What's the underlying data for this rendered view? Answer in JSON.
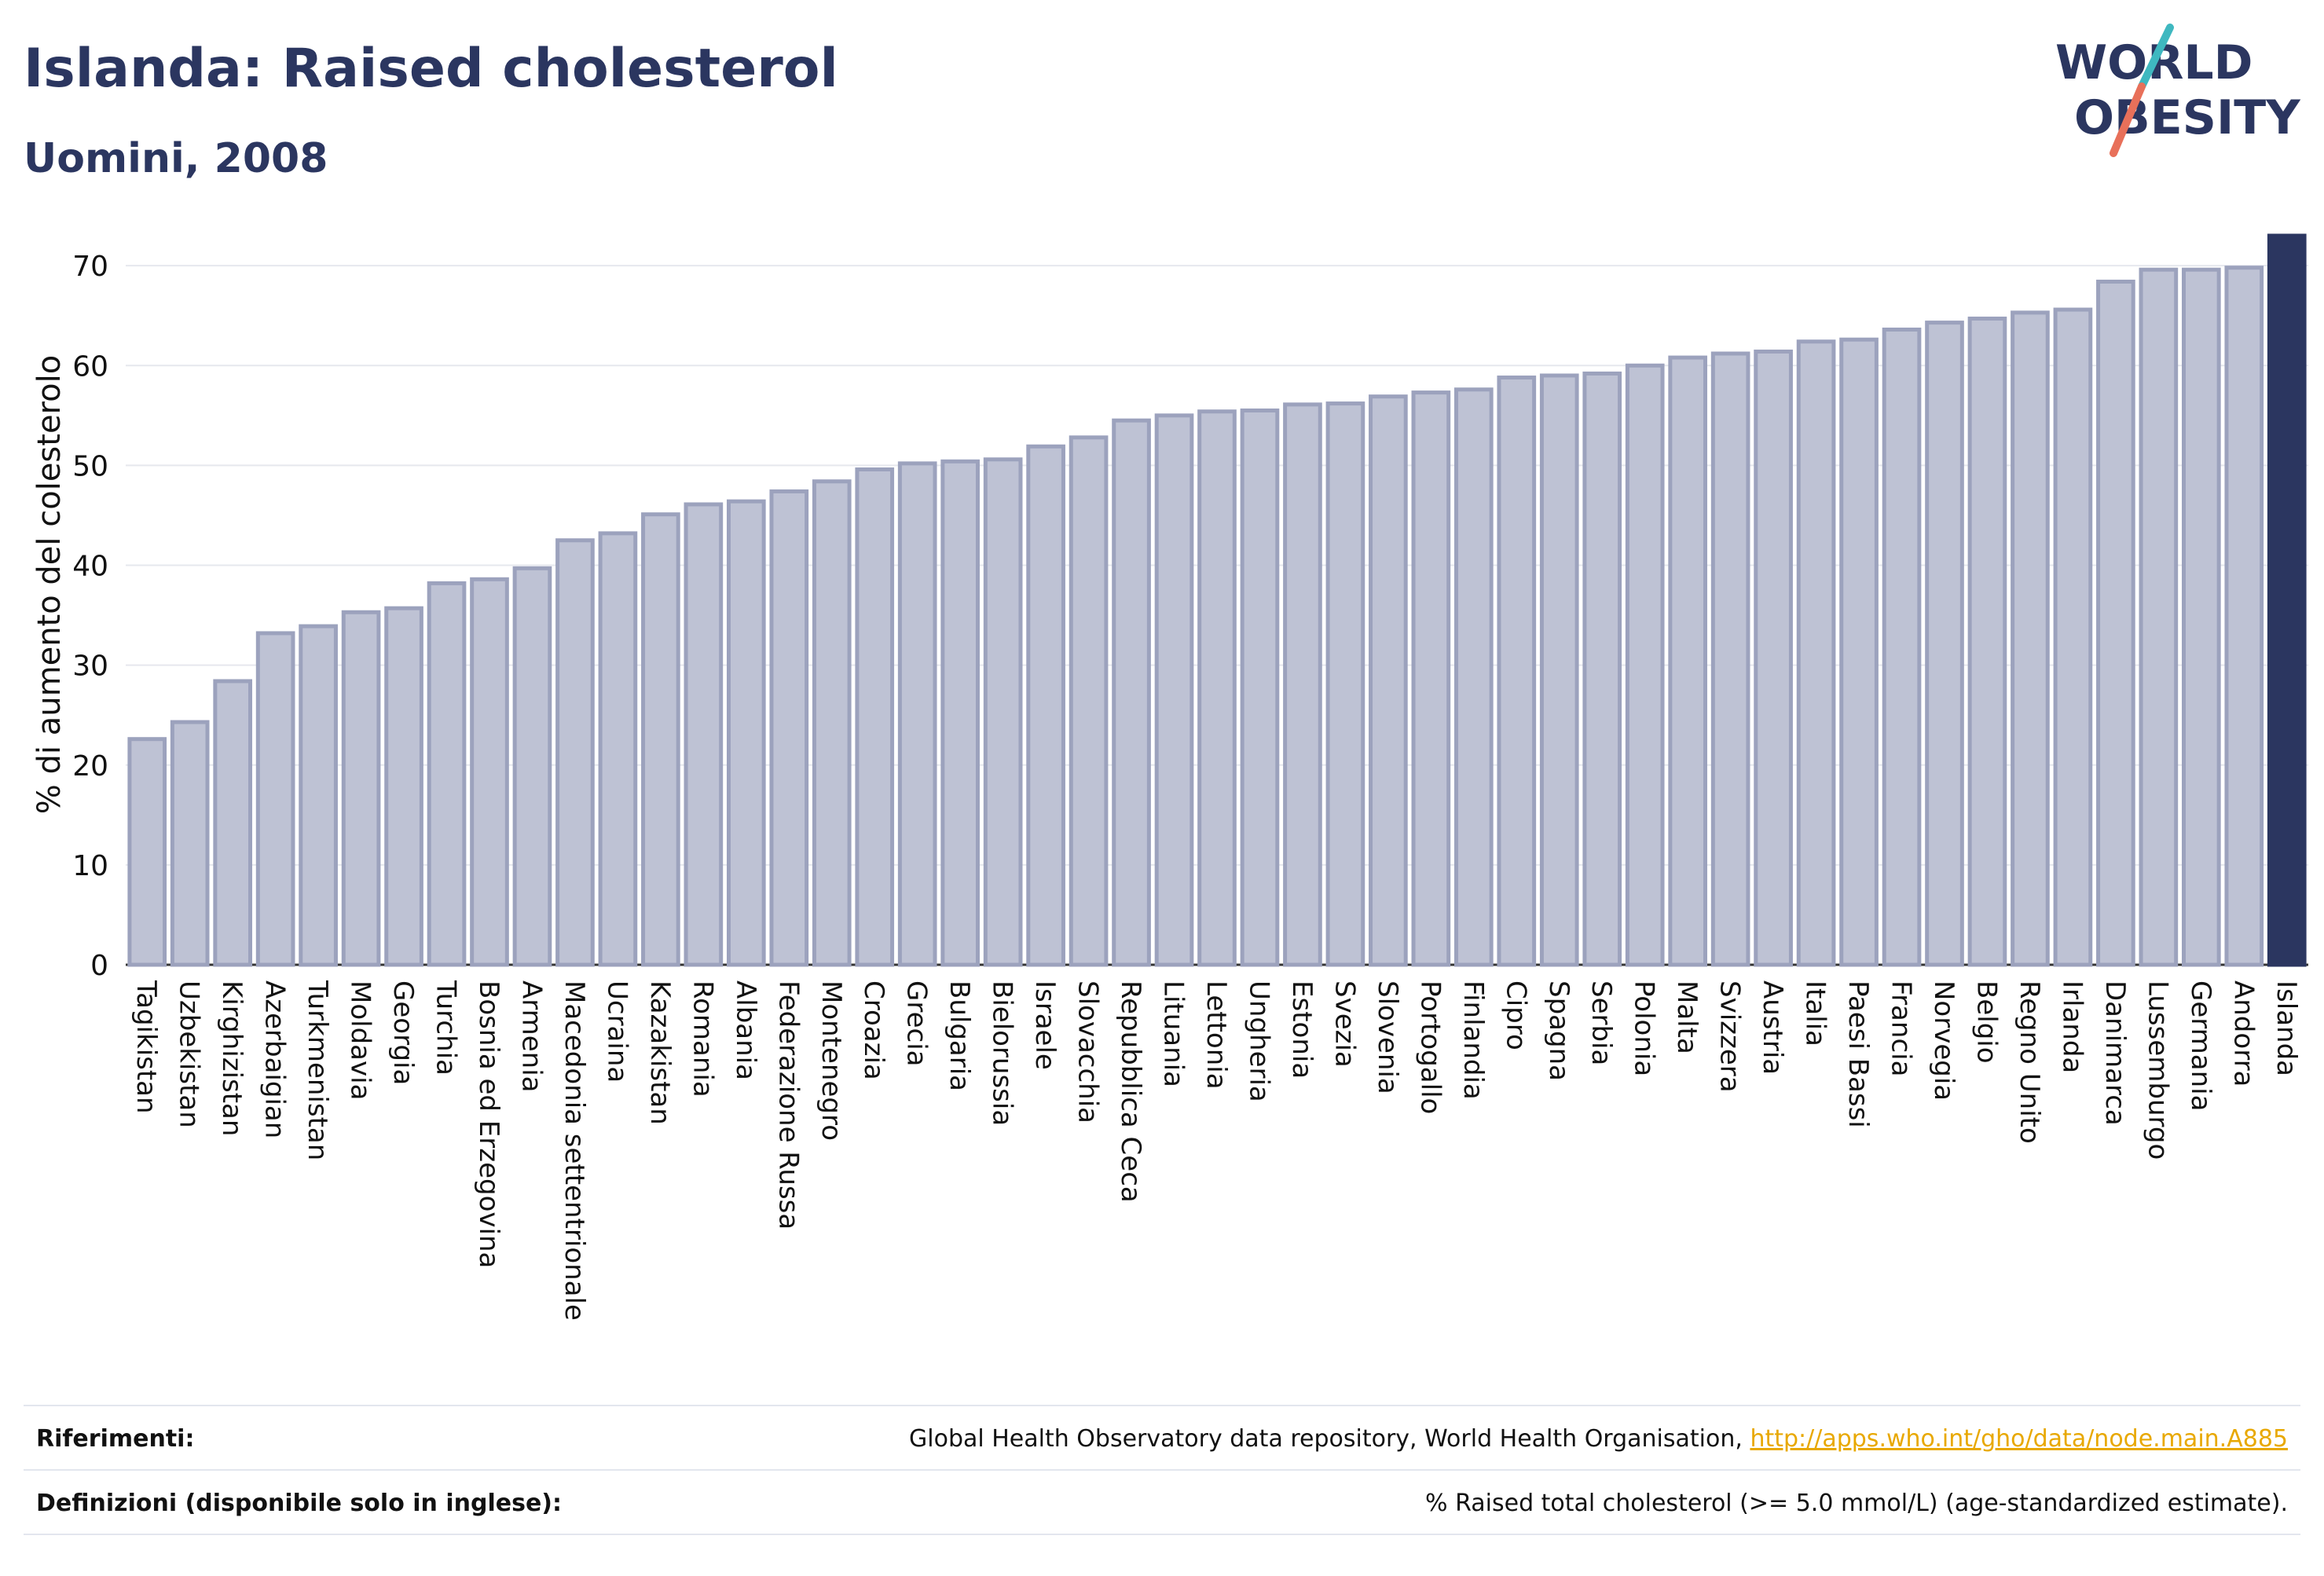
{
  "header": {
    "title": "Islanda: Raised cholesterol",
    "subtitle": "Uomini, 2008"
  },
  "logo": {
    "line1": "WORLD",
    "line2": "OBESITY",
    "colors": {
      "text": "#2b3660",
      "slash_teal": "#3fb8c0",
      "slash_coral": "#e8705a"
    }
  },
  "chart_data": {
    "type": "bar",
    "ylabel": "% di aumento del colesterolo",
    "ylim": [
      0,
      73
    ],
    "yticks": [
      0,
      10,
      20,
      30,
      40,
      50,
      60,
      70
    ],
    "grid": true,
    "categories": [
      "Tagikistan",
      "Uzbekistan",
      "Kirghizistan",
      "Azerbaigian",
      "Turkmenistan",
      "Moldavia",
      "Georgia",
      "Turchia",
      "Bosnia ed Erzegovina",
      "Armenia",
      "Macedonia settentrionale",
      "Ucraina",
      "Kazakistan",
      "Romania",
      "Albania",
      "Federazione Russa",
      "Montenegro",
      "Croazia",
      "Grecia",
      "Bulgaria",
      "Bielorussia",
      "Israele",
      "Slovacchia",
      "Repubblica Ceca",
      "Lituania",
      "Lettonia",
      "Ungheria",
      "Estonia",
      "Svezia",
      "Slovenia",
      "Portogallo",
      "Finlandia",
      "Cipro",
      "Spagna",
      "Serbia",
      "Polonia",
      "Malta",
      "Svizzera",
      "Austria",
      "Italia",
      "Paesi Bassi",
      "Francia",
      "Norvegia",
      "Belgio",
      "Regno Unito",
      "Irlanda",
      "Danimarca",
      "Lussemburgo",
      "Germania",
      "Andorra",
      "Islanda"
    ],
    "values": [
      22.6,
      24.3,
      28.4,
      33.2,
      33.9,
      35.3,
      35.7,
      38.2,
      38.6,
      39.7,
      42.5,
      43.2,
      45.1,
      46.1,
      46.4,
      47.4,
      48.4,
      49.6,
      50.2,
      50.4,
      50.6,
      51.9,
      52.8,
      54.5,
      55.0,
      55.4,
      55.5,
      56.1,
      56.2,
      56.9,
      57.3,
      57.6,
      58.8,
      59.0,
      59.2,
      60.0,
      60.8,
      61.2,
      61.4,
      62.4,
      62.6,
      63.6,
      64.3,
      64.7,
      65.3,
      65.6,
      68.4,
      69.6,
      69.6,
      69.8,
      73.0
    ],
    "highlight": "Islanda",
    "colors": {
      "bar": "#bec2d4",
      "bar_border": "#9ca2bd",
      "highlight": "#2b3660"
    }
  },
  "footer": {
    "references_label": "Riferimenti:",
    "references_text": "Global Health Observatory data repository, World Health Organisation, ",
    "references_link": "http://apps.who.int/gho/data/node.main.A885",
    "definitions_label": "Definizioni (disponibile solo in inglese):",
    "definitions_text": "% Raised total cholesterol (>= 5.0 mmol/L) (age-standardized estimate)."
  }
}
